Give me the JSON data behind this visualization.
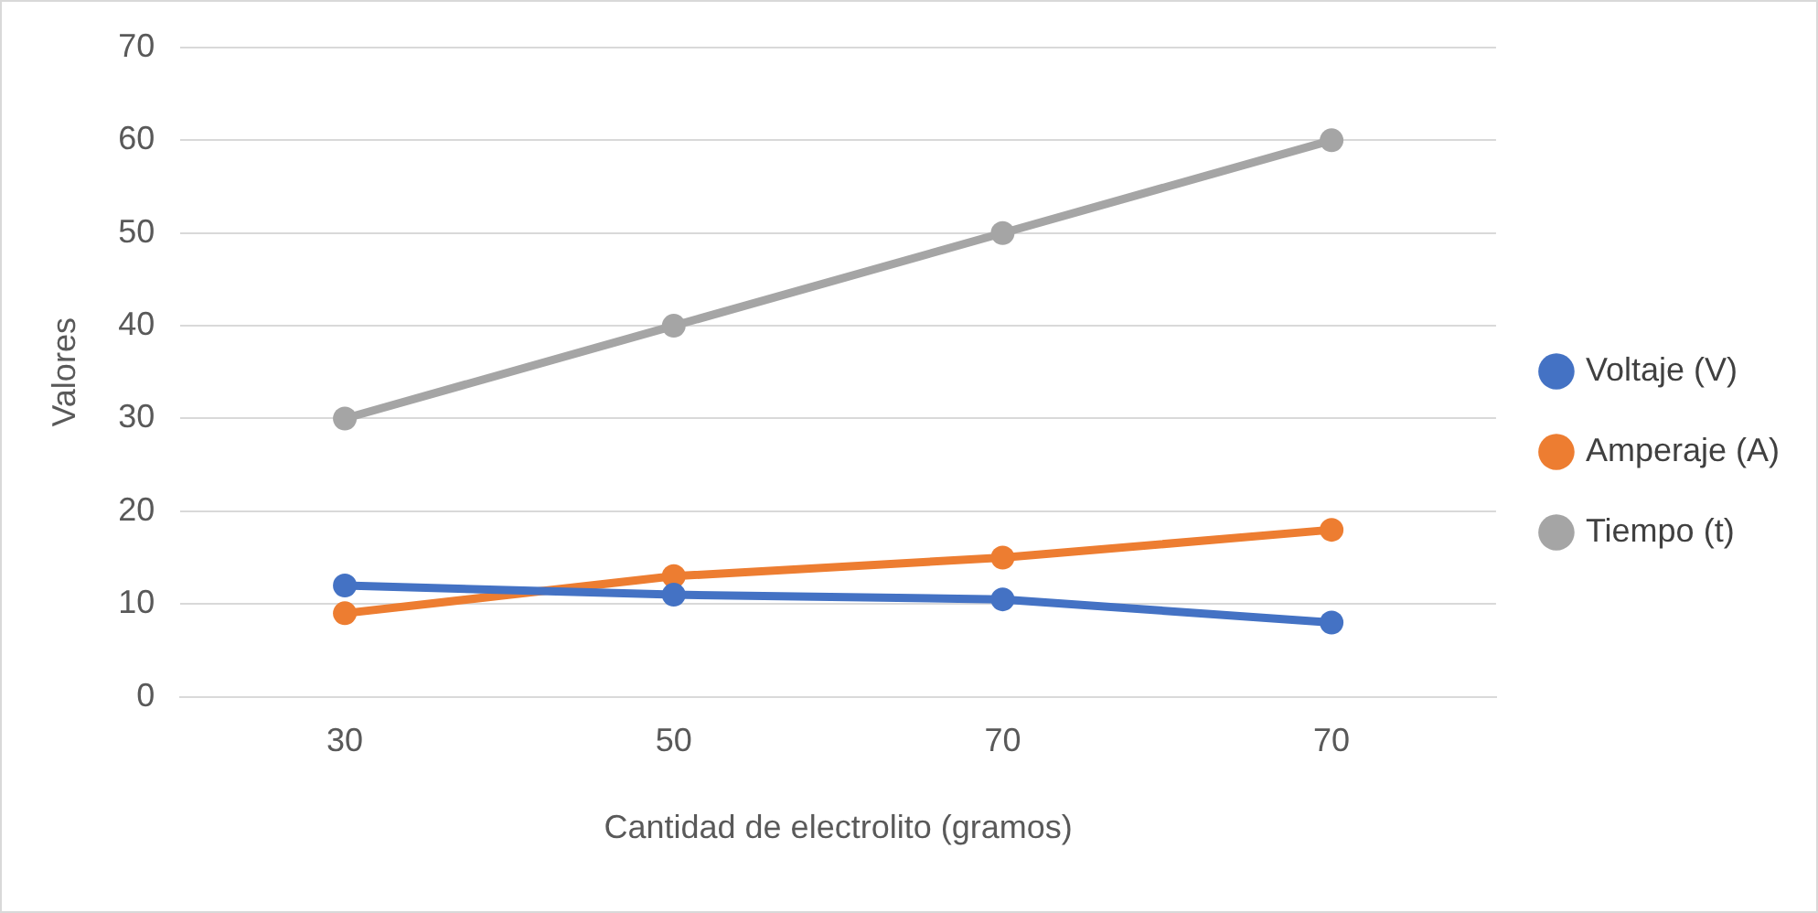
{
  "chart_data": {
    "type": "line",
    "xlabel": "Cantidad de electrolito (gramos)",
    "ylabel": "Valores",
    "categories": [
      "30",
      "50",
      "70",
      "70"
    ],
    "series": [
      {
        "name": "Voltaje (V)",
        "color": "#4472c4",
        "values": [
          12,
          11,
          10.5,
          8
        ]
      },
      {
        "name": "Amperaje (A)",
        "color": "#ed7d31",
        "values": [
          9,
          13,
          15,
          18
        ]
      },
      {
        "name": "Tiempo (t)",
        "color": "#a5a5a5",
        "values": [
          30,
          40,
          50,
          60
        ]
      }
    ],
    "ylim": [
      0,
      70
    ],
    "yticks": [
      0,
      10,
      20,
      30,
      40,
      50,
      60,
      70
    ],
    "grid": "y",
    "legend": "right",
    "marker": "circle",
    "line_style": "solid"
  }
}
